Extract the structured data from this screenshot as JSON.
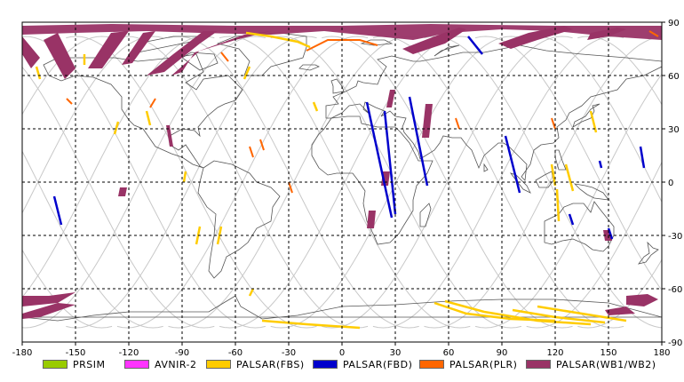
{
  "map": {
    "lon_range": [
      -180,
      180
    ],
    "lat_range": [
      -90,
      90
    ],
    "grid": true,
    "x_ticks": [
      "-180",
      "-150",
      "-120",
      "-90",
      "-60",
      "-30",
      "0",
      "30",
      "60",
      "90",
      "120",
      "150",
      "180"
    ],
    "y_ticks": [
      "90",
      "60",
      "30",
      "0",
      "-30",
      "-60",
      "-90"
    ]
  },
  "legend": [
    {
      "label": "PRSIM",
      "color": "#99cc00"
    },
    {
      "label": "AVNIR-2",
      "color": "#ff33ff"
    },
    {
      "label": "PALSAR(FBS)",
      "color": "#ffcc00"
    },
    {
      "label": "PALSAR(FBD)",
      "color": "#0000cc"
    },
    {
      "label": "PALSAR(PLR)",
      "color": "#ff6600"
    },
    {
      "label": "PALSAR(WB1/WB2)",
      "color": "#993366"
    }
  ],
  "colors": {
    "fbs": "#ffcc00",
    "fbd": "#0000cc",
    "plr": "#ff6600",
    "wb": "#993366",
    "orbit": "#c8c8c8",
    "coast": "#555555"
  }
}
